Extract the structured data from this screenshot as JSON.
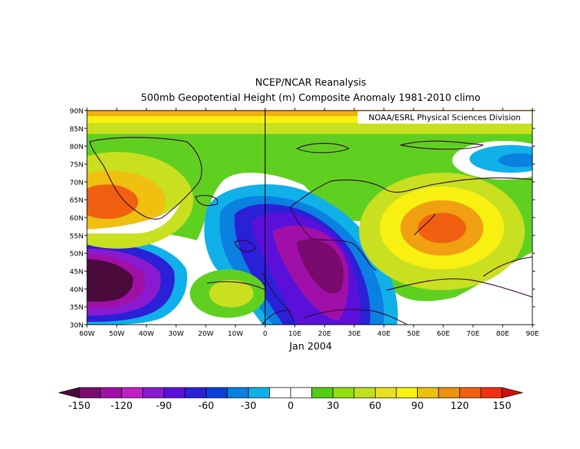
{
  "header": {
    "title": "NCEP/NCAR Reanalysis",
    "subtitle": "500mb Geopotential Height (m) Composite Anomaly 1981-2010 climo"
  },
  "credit": "NOAA/ESRL Physical Sciences Division",
  "caption": "Jan 2004",
  "map": {
    "lat_ticks": [
      "90N",
      "85N",
      "80N",
      "75N",
      "70N",
      "65N",
      "60N",
      "55N",
      "50N",
      "45N",
      "40N",
      "35N",
      "30N"
    ],
    "lon_ticks": [
      "60W",
      "50W",
      "40W",
      "30W",
      "20W",
      "10W",
      "0",
      "10E",
      "20E",
      "30E",
      "40E",
      "50E",
      "60E",
      "70E",
      "80E",
      "90E"
    ]
  },
  "colorbar": {
    "labels": [
      "-150",
      "-120",
      "-90",
      "-60",
      "-30",
      "0",
      "30",
      "60",
      "90",
      "120",
      "150"
    ],
    "colors": [
      "#4a0a3c",
      "#7a0a6e",
      "#a010a8",
      "#c020c8",
      "#8a1ad0",
      "#5a10d8",
      "#2a20d8",
      "#0a40d8",
      "#0a80e0",
      "#10b0e8",
      "#ffffff",
      "#ffffff",
      "#50d010",
      "#90e010",
      "#c0e020",
      "#e8e020",
      "#f8f010",
      "#f0c010",
      "#f09010",
      "#f06010",
      "#f03010",
      "#d01010"
    ]
  }
}
